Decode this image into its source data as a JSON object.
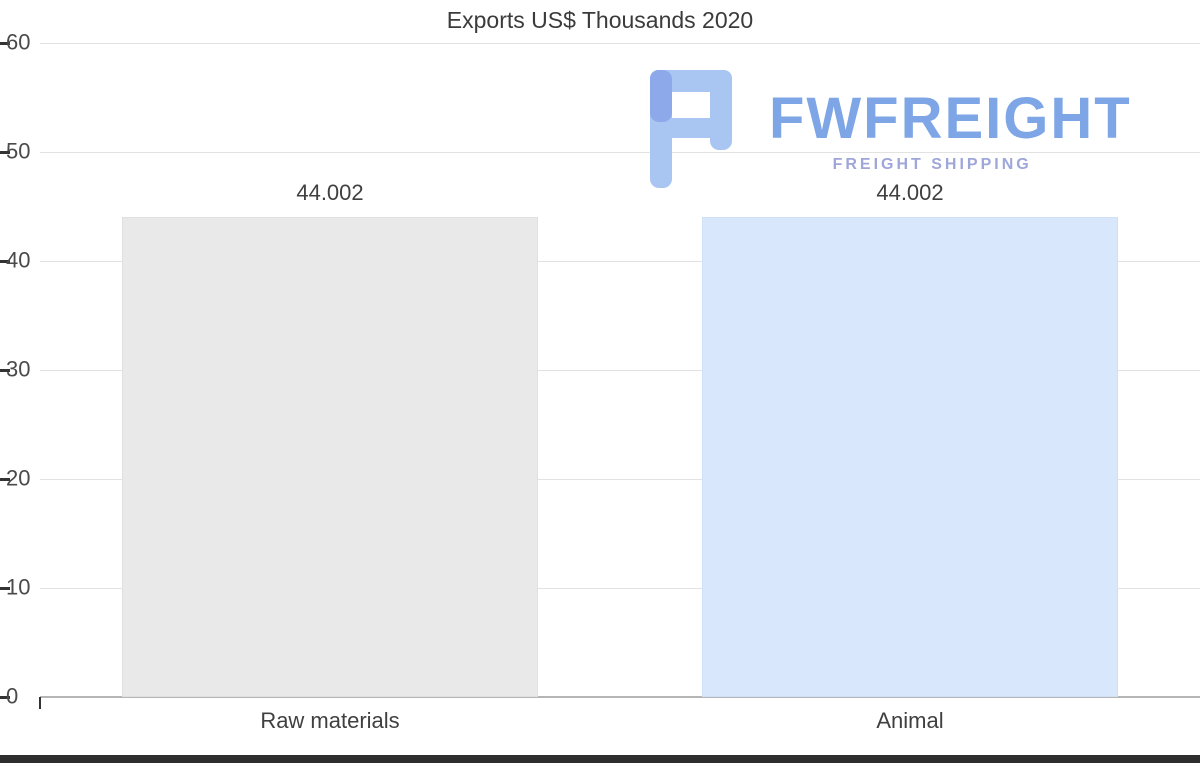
{
  "chart_data": {
    "type": "bar",
    "title": "Exports US$ Thousands 2020",
    "categories": [
      "Raw materials",
      "Animal"
    ],
    "values": [
      44.002,
      44.002
    ],
    "value_labels": [
      "44.002",
      "44.002"
    ],
    "series": [
      {
        "name": "Exports US$ Thousands 2020",
        "values": [
          44.002,
          44.002
        ]
      }
    ],
    "xlabel": "",
    "ylabel": "",
    "ylim": [
      0,
      60
    ],
    "yticks": [
      0,
      10,
      20,
      30,
      40,
      50,
      60
    ],
    "grid": true,
    "legend": "none",
    "bar_colors": [
      "#e9e9e9",
      "#d8e7fb"
    ],
    "bar_border_colors": [
      "#e0e0e0",
      "#cfe0f7"
    ]
  },
  "watermark": {
    "brand": "FWFREIGHT",
    "tagline": "FREIGHT SHIPPING",
    "brand_color": "#7ea6e6",
    "tagline_color": "#9fa6d9",
    "mark_color": "#a9c6f3",
    "mark_accent": "#8ea9ea"
  },
  "colors": {
    "background": "#ffffff",
    "gridline": "#e2e2e2",
    "axis_line": "#b5b5b5",
    "tick": "#333333",
    "axis_text": "#4a4a4a",
    "label_text": "#404040",
    "bottom_bar": "#2e2e2e"
  }
}
